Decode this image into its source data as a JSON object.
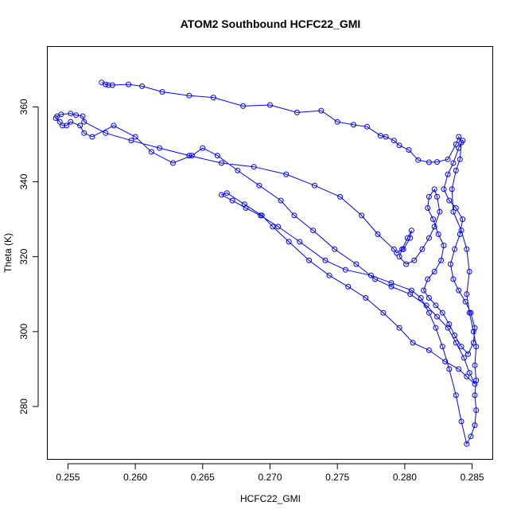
{
  "chart_data": {
    "type": "line",
    "title": "ATOM2 Southbound HCFC22_GMI",
    "xlabel": "HCFC22_GMI",
    "ylabel": "Theta (K)",
    "xlim": [
      0.2535,
      0.2865
    ],
    "ylim": [
      266,
      376
    ],
    "xticks": [
      0.255,
      0.26,
      0.265,
      0.27,
      0.275,
      0.28,
      0.285
    ],
    "xtick_labels": [
      "0.255",
      "0.260",
      "0.265",
      "0.270",
      "0.275",
      "0.280",
      "0.285"
    ],
    "yticks": [
      280,
      300,
      320,
      340,
      360
    ],
    "ytick_labels": [
      "280",
      "300",
      "320",
      "340",
      "360"
    ],
    "grid": false,
    "legend": "none",
    "series": [
      {
        "color": "#0000ff",
        "marker": "open-circle",
        "points": [
          [
            0.2575,
            366.5
          ],
          [
            0.2578,
            366
          ],
          [
            0.258,
            365.8
          ],
          [
            0.2583,
            365.8
          ],
          [
            0.2595,
            366
          ],
          [
            0.2605,
            365.5
          ],
          [
            0.262,
            364
          ],
          [
            0.264,
            363
          ],
          [
            0.2658,
            362.5
          ],
          [
            0.268,
            360.2
          ],
          [
            0.27,
            360.5
          ],
          [
            0.272,
            358.5
          ],
          [
            0.2738,
            359
          ],
          [
            0.275,
            356
          ],
          [
            0.2762,
            355.2
          ],
          [
            0.2772,
            354.7
          ],
          [
            0.2782,
            352.3
          ],
          [
            0.2786,
            352
          ],
          [
            0.2792,
            351
          ],
          [
            0.2796,
            349.7
          ],
          [
            0.2803,
            348.5
          ],
          [
            0.281,
            345.8
          ],
          [
            0.2818,
            345.2
          ],
          [
            0.2824,
            345.3
          ],
          [
            0.2832,
            346
          ],
          [
            0.2838,
            350
          ],
          [
            0.284,
            352
          ],
          [
            0.2842,
            350.5
          ],
          [
            0.2841,
            346
          ],
          [
            0.2838,
            343
          ],
          [
            0.2835,
            338
          ],
          [
            0.2836,
            332
          ],
          [
            0.2842,
            327
          ],
          [
            0.2846,
            322
          ],
          [
            0.2848,
            316
          ],
          [
            0.2846,
            310
          ],
          [
            0.2848,
            305
          ],
          [
            0.2851,
            300
          ],
          [
            0.2853,
            296
          ],
          [
            0.2852,
            291
          ],
          [
            0.2853,
            287
          ],
          [
            0.2852,
            283
          ],
          [
            0.2853,
            279
          ],
          [
            0.2852,
            275
          ],
          [
            0.2849,
            272
          ],
          [
            0.2846,
            270
          ],
          [
            0.2842,
            276
          ],
          [
            0.2838,
            283
          ],
          [
            0.2833,
            290
          ],
          [
            0.2828,
            296
          ],
          [
            0.2823,
            301
          ],
          [
            0.2818,
            305
          ],
          [
            0.2812,
            309
          ],
          [
            0.2805,
            311
          ],
          [
            0.279,
            313
          ],
          [
            0.2775,
            315
          ],
          [
            0.2756,
            316.5
          ],
          [
            0.2741,
            319
          ],
          [
            0.2722,
            324
          ],
          [
            0.2706,
            328
          ],
          [
            0.2693,
            331
          ],
          [
            0.2682,
            333
          ],
          [
            0.2672,
            335
          ],
          [
            0.2664,
            336.5
          ],
          [
            0.2668,
            337
          ],
          [
            0.2681,
            334
          ],
          [
            0.2694,
            331
          ],
          [
            0.2702,
            328
          ],
          [
            0.2714,
            324
          ],
          [
            0.2729,
            319
          ],
          [
            0.2744,
            315
          ],
          [
            0.2758,
            312
          ],
          [
            0.2771,
            309
          ],
          [
            0.2784,
            305
          ],
          [
            0.2796,
            301
          ],
          [
            0.2806,
            297
          ],
          [
            0.2818,
            295
          ],
          [
            0.283,
            292
          ],
          [
            0.284,
            290
          ],
          [
            0.2846,
            288
          ],
          [
            0.2852,
            286
          ],
          [
            0.2848,
            289
          ],
          [
            0.2844,
            293
          ],
          [
            0.2838,
            297
          ],
          [
            0.2832,
            301
          ],
          [
            0.2824,
            304
          ],
          [
            0.2816,
            307
          ],
          [
            0.2804,
            310
          ],
          [
            0.279,
            312
          ],
          [
            0.2778,
            314
          ],
          [
            0.2764,
            318
          ],
          [
            0.2748,
            322
          ],
          [
            0.2732,
            327
          ],
          [
            0.2718,
            331
          ],
          [
            0.2708,
            335
          ],
          [
            0.2692,
            339
          ],
          [
            0.2676,
            343
          ],
          [
            0.2661,
            347
          ],
          [
            0.265,
            349
          ],
          [
            0.2642,
            347
          ],
          [
            0.2628,
            345
          ],
          [
            0.2612,
            348
          ],
          [
            0.26,
            352
          ],
          [
            0.2584,
            355
          ],
          [
            0.2568,
            352
          ],
          [
            0.2562,
            353
          ],
          [
            0.2559,
            355
          ],
          [
            0.2552,
            356
          ],
          [
            0.2549,
            355
          ],
          [
            0.2546,
            355
          ],
          [
            0.2544,
            356
          ],
          [
            0.2541,
            357
          ],
          [
            0.2542,
            357.5
          ],
          [
            0.2545,
            358
          ],
          [
            0.2552,
            358.2
          ],
          [
            0.2556,
            357.8
          ],
          [
            0.2561,
            357.5
          ],
          [
            0.2562,
            356
          ],
          [
            0.2578,
            353
          ],
          [
            0.2597,
            351
          ],
          [
            0.2618,
            349
          ],
          [
            0.264,
            347
          ],
          [
            0.2664,
            345
          ],
          [
            0.2688,
            344
          ],
          [
            0.2712,
            342
          ],
          [
            0.2733,
            339
          ],
          [
            0.2752,
            336
          ],
          [
            0.2768,
            331
          ],
          [
            0.278,
            326
          ],
          [
            0.2792,
            322
          ],
          [
            0.2794,
            321
          ],
          [
            0.2799,
            322
          ],
          [
            0.2804,
            325
          ],
          [
            0.2805,
            327
          ],
          [
            0.2802,
            325
          ],
          [
            0.2798,
            322
          ],
          [
            0.2796,
            320
          ],
          [
            0.2801,
            318
          ],
          [
            0.2807,
            319
          ],
          [
            0.2813,
            322
          ],
          [
            0.2818,
            325
          ],
          [
            0.2822,
            328
          ],
          [
            0.2826,
            332
          ],
          [
            0.2824,
            336
          ],
          [
            0.2822,
            338
          ],
          [
            0.2818,
            336
          ],
          [
            0.2817,
            333
          ],
          [
            0.2821,
            330
          ],
          [
            0.2825,
            326
          ],
          [
            0.2829,
            323
          ],
          [
            0.2827,
            319
          ],
          [
            0.2822,
            316
          ],
          [
            0.2817,
            314
          ],
          [
            0.2814,
            311
          ],
          [
            0.2818,
            309
          ],
          [
            0.2823,
            307
          ],
          [
            0.2828,
            305
          ],
          [
            0.2833,
            302
          ],
          [
            0.2837,
            299
          ],
          [
            0.2842,
            296
          ],
          [
            0.2847,
            294
          ],
          [
            0.2851,
            297
          ],
          [
            0.2852,
            301
          ],
          [
            0.2849,
            305
          ],
          [
            0.2845,
            308
          ],
          [
            0.284,
            311
          ],
          [
            0.2836,
            314
          ],
          [
            0.2834,
            318
          ],
          [
            0.2837,
            322
          ],
          [
            0.2841,
            326
          ],
          [
            0.2843,
            330
          ],
          [
            0.2838,
            333
          ],
          [
            0.2833,
            335
          ],
          [
            0.2829,
            338
          ],
          [
            0.2832,
            342
          ],
          [
            0.2836,
            345
          ],
          [
            0.284,
            349
          ],
          [
            0.2843,
            351
          ]
        ]
      }
    ]
  }
}
